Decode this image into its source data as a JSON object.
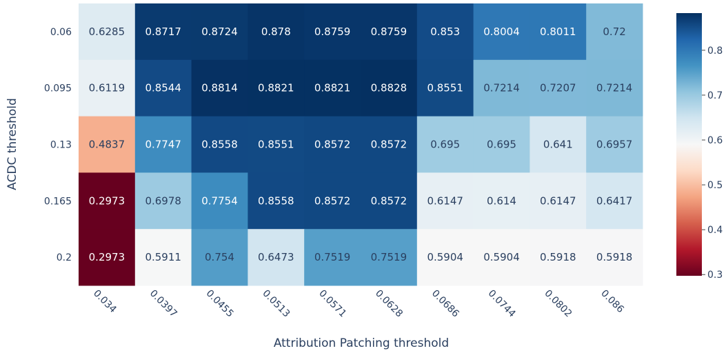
{
  "chart_data": {
    "type": "heatmap",
    "title": "",
    "xlabel": "Attribution Patching threshold",
    "ylabel": "ACDC threshold",
    "x": [
      "0.034",
      "0.0397",
      "0.0455",
      "0.0513",
      "0.0571",
      "0.0628",
      "0.0686",
      "0.0744",
      "0.0802",
      "0.086"
    ],
    "y": [
      "0.06",
      "0.095",
      "0.13",
      "0.165",
      "0.2"
    ],
    "z": [
      [
        0.6285,
        0.8717,
        0.8724,
        0.878,
        0.8759,
        0.8759,
        0.853,
        0.8004,
        0.8011,
        0.72
      ],
      [
        0.6119,
        0.8544,
        0.8814,
        0.8821,
        0.8821,
        0.8828,
        0.8551,
        0.7214,
        0.7207,
        0.7214
      ],
      [
        0.4837,
        0.7747,
        0.8558,
        0.8551,
        0.8572,
        0.8572,
        0.695,
        0.695,
        0.641,
        0.6957
      ],
      [
        0.2973,
        0.6978,
        0.7754,
        0.8558,
        0.8572,
        0.8572,
        0.6147,
        0.614,
        0.6147,
        0.6417
      ],
      [
        0.2973,
        0.5911,
        0.754,
        0.6473,
        0.7519,
        0.7519,
        0.5904,
        0.5904,
        0.5918,
        0.5918
      ]
    ],
    "z_labels": [
      [
        "0.6285",
        "0.8717",
        "0.8724",
        "0.878",
        "0.8759",
        "0.8759",
        "0.853",
        "0.8004",
        "0.8011",
        "0.72"
      ],
      [
        "0.6119",
        "0.8544",
        "0.8814",
        "0.8821",
        "0.8821",
        "0.8828",
        "0.8551",
        "0.7214",
        "0.7207",
        "0.7214"
      ],
      [
        "0.4837",
        "0.7747",
        "0.8558",
        "0.8551",
        "0.8572",
        "0.8572",
        "0.695",
        "0.695",
        "0.641",
        "0.6957"
      ],
      [
        "0.2973",
        "0.6978",
        "0.7754",
        "0.8558",
        "0.8572",
        "0.8572",
        "0.6147",
        "0.614",
        "0.6147",
        "0.6417"
      ],
      [
        "0.2973",
        "0.5911",
        "0.754",
        "0.6473",
        "0.7519",
        "0.7519",
        "0.5904",
        "0.5904",
        "0.5918",
        "0.5918"
      ]
    ],
    "colorscale": "RdBu",
    "zmin": 0.2973,
    "zmax": 0.8828,
    "colorbar_ticks": [
      "0.3",
      "0.4",
      "0.5",
      "0.6",
      "0.7",
      "0.8"
    ],
    "legend": "right colorbar",
    "grid": false
  }
}
